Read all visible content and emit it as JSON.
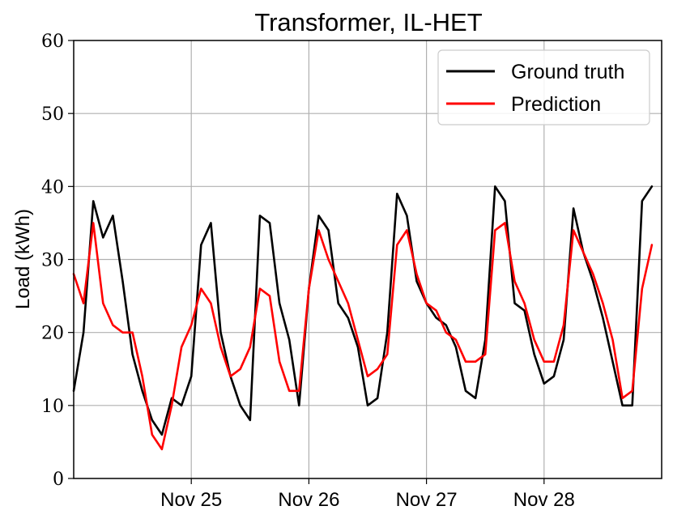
{
  "chart_data": {
    "type": "line",
    "title": "Transformer, IL-HET",
    "xlabel": "",
    "ylabel": "Load (kWh)",
    "ylim": [
      0,
      60
    ],
    "yticks": [
      0,
      10,
      20,
      30,
      40,
      50,
      60
    ],
    "xlim": [
      "2023-11-24 00:00",
      "2023-11-29 00:00"
    ],
    "xticks": [
      {
        "x": "2023-11-25 00:00",
        "label": "Nov 25"
      },
      {
        "x": "2023-11-26 00:00",
        "label": "Nov 26"
      },
      {
        "x": "2023-11-27 00:00",
        "label": "Nov 27"
      },
      {
        "x": "2023-11-28 00:00",
        "label": "Nov 28"
      }
    ],
    "grid": true,
    "legend_position": "top-right",
    "x": [
      "2023-11-24 00:00",
      "2023-11-24 02:00",
      "2023-11-24 04:00",
      "2023-11-24 06:00",
      "2023-11-24 08:00",
      "2023-11-24 10:00",
      "2023-11-24 12:00",
      "2023-11-24 14:00",
      "2023-11-24 16:00",
      "2023-11-24 18:00",
      "2023-11-24 20:00",
      "2023-11-24 22:00",
      "2023-11-25 00:00",
      "2023-11-25 02:00",
      "2023-11-25 04:00",
      "2023-11-25 06:00",
      "2023-11-25 08:00",
      "2023-11-25 10:00",
      "2023-11-25 12:00",
      "2023-11-25 14:00",
      "2023-11-25 16:00",
      "2023-11-25 18:00",
      "2023-11-25 20:00",
      "2023-11-25 22:00",
      "2023-11-26 00:00",
      "2023-11-26 02:00",
      "2023-11-26 04:00",
      "2023-11-26 06:00",
      "2023-11-26 08:00",
      "2023-11-26 10:00",
      "2023-11-26 12:00",
      "2023-11-26 14:00",
      "2023-11-26 16:00",
      "2023-11-26 18:00",
      "2023-11-26 20:00",
      "2023-11-26 22:00",
      "2023-11-27 00:00",
      "2023-11-27 02:00",
      "2023-11-27 04:00",
      "2023-11-27 06:00",
      "2023-11-27 08:00",
      "2023-11-27 10:00",
      "2023-11-27 12:00",
      "2023-11-27 14:00",
      "2023-11-27 16:00",
      "2023-11-27 18:00",
      "2023-11-27 20:00",
      "2023-11-27 22:00",
      "2023-11-28 00:00",
      "2023-11-28 02:00",
      "2023-11-28 04:00",
      "2023-11-28 06:00",
      "2023-11-28 08:00",
      "2023-11-28 10:00",
      "2023-11-28 12:00",
      "2023-11-28 14:00",
      "2023-11-28 16:00",
      "2023-11-28 18:00",
      "2023-11-28 20:00",
      "2023-11-28 22:00"
    ],
    "series": [
      {
        "name": "Ground truth",
        "color": "#000000",
        "values": [
          12,
          20,
          38,
          33,
          36,
          27,
          17,
          12,
          8,
          6,
          11,
          10,
          14,
          32,
          35,
          20,
          14,
          10,
          8,
          36,
          35,
          24,
          19,
          10,
          26,
          36,
          34,
          24,
          22,
          18,
          10,
          11,
          20,
          39,
          36,
          27,
          24,
          22,
          21,
          18,
          12,
          11,
          19,
          40,
          38,
          24,
          23,
          17,
          13,
          14,
          19,
          37,
          31,
          27,
          22,
          16,
          10,
          10,
          38,
          40
        ]
      },
      {
        "name": "Prediction",
        "color": "#ff0000",
        "values": [
          28,
          24,
          35,
          24,
          21,
          20,
          20,
          14,
          6,
          4,
          10,
          18,
          21,
          26,
          24,
          18,
          14,
          15,
          18,
          26,
          25,
          16,
          12,
          12,
          26,
          34,
          30,
          27,
          24,
          19,
          14,
          15,
          17,
          32,
          34,
          28,
          24,
          23,
          20,
          19,
          16,
          16,
          17,
          34,
          35,
          27,
          24,
          19,
          16,
          16,
          21,
          34,
          31,
          28,
          24,
          19,
          11,
          12,
          26,
          32
        ]
      }
    ]
  }
}
